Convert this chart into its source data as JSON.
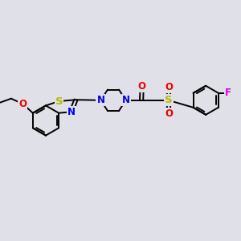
{
  "bg_color": "#e0e0e8",
  "bond_color": "#000000",
  "bond_lw": 1.4,
  "S_color": "#b8b800",
  "N_color": "#0000ee",
  "O_color": "#ee0000",
  "F_color": "#dd00dd",
  "font_size": 8.5,
  "xlim": [
    0,
    10
  ],
  "ylim": [
    2,
    8
  ]
}
